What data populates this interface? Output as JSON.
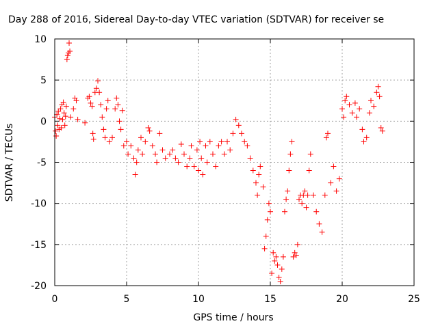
{
  "chart_data": {
    "type": "scatter",
    "title": "Day 288 of 2016, Sidereal Day-to-day VTEC variation (SDTVAR) for receiver se",
    "xlabel": "GPS time / hours",
    "ylabel": "SDTVAR / TECUs",
    "xlim": [
      0,
      25
    ],
    "ylim": [
      -20,
      10
    ],
    "xticks": [
      0,
      5,
      10,
      15,
      20,
      25
    ],
    "yticks": [
      -20,
      -15,
      -10,
      -5,
      0,
      5,
      10
    ],
    "grid": true,
    "marker": "+",
    "color": "#ff0000",
    "series": [
      {
        "points": [
          [
            0.0,
            0.5
          ],
          [
            0.05,
            -1.2
          ],
          [
            0.1,
            -1.8
          ],
          [
            0.15,
            0.8
          ],
          [
            0.2,
            -0.5
          ],
          [
            0.25,
            1.2
          ],
          [
            0.3,
            -1.0
          ],
          [
            0.35,
            0.3
          ],
          [
            0.4,
            1.5
          ],
          [
            0.45,
            -0.8
          ],
          [
            0.5,
            2.0
          ],
          [
            0.55,
            0.2
          ],
          [
            0.6,
            2.3
          ],
          [
            0.65,
            1.0
          ],
          [
            0.7,
            -0.5
          ],
          [
            0.75,
            0.6
          ],
          [
            0.8,
            1.8
          ],
          [
            0.85,
            7.5
          ],
          [
            0.9,
            8.0
          ],
          [
            0.95,
            8.3
          ],
          [
            1.0,
            9.5
          ],
          [
            1.05,
            8.5
          ],
          [
            1.1,
            0.5
          ],
          [
            1.3,
            1.5
          ],
          [
            1.4,
            2.8
          ],
          [
            1.5,
            2.5
          ],
          [
            1.6,
            0.2
          ],
          [
            2.1,
            -0.2
          ],
          [
            2.3,
            2.8
          ],
          [
            2.4,
            3.0
          ],
          [
            2.5,
            2.2
          ],
          [
            2.6,
            1.8
          ],
          [
            2.65,
            -1.5
          ],
          [
            2.7,
            -2.2
          ],
          [
            2.8,
            3.5
          ],
          [
            2.9,
            4.0
          ],
          [
            3.0,
            4.9
          ],
          [
            3.1,
            3.5
          ],
          [
            3.2,
            2.0
          ],
          [
            3.3,
            0.5
          ],
          [
            3.4,
            -1.0
          ],
          [
            3.5,
            -2.0
          ],
          [
            3.6,
            1.5
          ],
          [
            3.7,
            2.5
          ],
          [
            3.8,
            -2.5
          ],
          [
            4.0,
            -2.0
          ],
          [
            4.2,
            1.5
          ],
          [
            4.3,
            2.8
          ],
          [
            4.4,
            2.0
          ],
          [
            4.5,
            0.0
          ],
          [
            4.6,
            -1.0
          ],
          [
            4.7,
            1.3
          ],
          [
            4.8,
            -3.0
          ],
          [
            5.0,
            -2.5
          ],
          [
            5.1,
            -4.0
          ],
          [
            5.3,
            -3.0
          ],
          [
            5.5,
            -4.5
          ],
          [
            5.6,
            -6.5
          ],
          [
            5.7,
            -5.0
          ],
          [
            5.8,
            -3.5
          ],
          [
            6.0,
            -2.0
          ],
          [
            6.1,
            -4.0
          ],
          [
            6.3,
            -2.5
          ],
          [
            6.5,
            -0.8
          ],
          [
            6.6,
            -1.2
          ],
          [
            6.8,
            -3.0
          ],
          [
            7.0,
            -4.0
          ],
          [
            7.1,
            -5.0
          ],
          [
            7.3,
            -1.5
          ],
          [
            7.5,
            -3.5
          ],
          [
            7.7,
            -4.5
          ],
          [
            8.0,
            -4.0
          ],
          [
            8.2,
            -3.5
          ],
          [
            8.4,
            -4.5
          ],
          [
            8.6,
            -5.0
          ],
          [
            8.8,
            -2.8
          ],
          [
            9.0,
            -4.0
          ],
          [
            9.2,
            -5.5
          ],
          [
            9.4,
            -4.5
          ],
          [
            9.5,
            -3.0
          ],
          [
            9.7,
            -5.5
          ],
          [
            9.9,
            -3.5
          ],
          [
            10.0,
            -6.0
          ],
          [
            10.1,
            -2.5
          ],
          [
            10.2,
            -4.5
          ],
          [
            10.3,
            -6.5
          ],
          [
            10.5,
            -3.0
          ],
          [
            10.6,
            -5.0
          ],
          [
            10.8,
            -2.5
          ],
          [
            11.0,
            -4.0
          ],
          [
            11.2,
            -5.5
          ],
          [
            11.4,
            -3.0
          ],
          [
            11.6,
            -2.5
          ],
          [
            11.8,
            -4.0
          ],
          [
            12.0,
            -2.5
          ],
          [
            12.2,
            -3.5
          ],
          [
            12.4,
            -1.5
          ],
          [
            12.6,
            0.2
          ],
          [
            12.8,
            -0.5
          ],
          [
            13.0,
            -1.5
          ],
          [
            13.2,
            -2.5
          ],
          [
            13.4,
            -3.0
          ],
          [
            13.6,
            -4.5
          ],
          [
            13.8,
            -6.0
          ],
          [
            14.0,
            -7.5
          ],
          [
            14.1,
            -9.0
          ],
          [
            14.2,
            -6.5
          ],
          [
            14.3,
            -5.5
          ],
          [
            14.5,
            -8.0
          ],
          [
            14.6,
            -15.5
          ],
          [
            14.7,
            -14.0
          ],
          [
            14.8,
            -12.0
          ],
          [
            14.9,
            -10.0
          ],
          [
            15.0,
            -11.0
          ],
          [
            15.1,
            -18.5
          ],
          [
            15.2,
            -16.0
          ],
          [
            15.3,
            -17.0
          ],
          [
            15.4,
            -16.5
          ],
          [
            15.5,
            -17.5
          ],
          [
            15.6,
            -19.0
          ],
          [
            15.7,
            -19.5
          ],
          [
            15.8,
            -18.0
          ],
          [
            15.9,
            -16.5
          ],
          [
            16.0,
            -11.0
          ],
          [
            16.1,
            -9.5
          ],
          [
            16.2,
            -8.5
          ],
          [
            16.3,
            -6.0
          ],
          [
            16.4,
            -4.0
          ],
          [
            16.5,
            -2.5
          ],
          [
            16.6,
            -16.5
          ],
          [
            16.7,
            -16.0
          ],
          [
            16.8,
            -16.3
          ],
          [
            16.9,
            -15.0
          ],
          [
            17.0,
            -9.5
          ],
          [
            17.1,
            -9.0
          ],
          [
            17.2,
            -10.0
          ],
          [
            17.3,
            -9.0
          ],
          [
            17.4,
            -8.5
          ],
          [
            17.5,
            -10.5
          ],
          [
            17.6,
            -9.0
          ],
          [
            17.7,
            -6.0
          ],
          [
            17.8,
            -4.0
          ],
          [
            18.0,
            -9.0
          ],
          [
            18.2,
            -11.0
          ],
          [
            18.4,
            -12.5
          ],
          [
            18.6,
            -13.5
          ],
          [
            18.8,
            -9.0
          ],
          [
            18.9,
            -2.0
          ],
          [
            19.0,
            -1.5
          ],
          [
            19.2,
            -7.5
          ],
          [
            19.4,
            -5.5
          ],
          [
            19.6,
            -8.5
          ],
          [
            19.8,
            -7.0
          ],
          [
            20.0,
            1.5
          ],
          [
            20.1,
            0.5
          ],
          [
            20.2,
            2.5
          ],
          [
            20.3,
            3.0
          ],
          [
            20.5,
            2.0
          ],
          [
            20.7,
            1.0
          ],
          [
            20.9,
            2.2
          ],
          [
            21.0,
            0.5
          ],
          [
            21.2,
            1.5
          ],
          [
            21.4,
            -1.0
          ],
          [
            21.5,
            -2.5
          ],
          [
            21.7,
            -2.0
          ],
          [
            21.9,
            1.0
          ],
          [
            22.0,
            2.5
          ],
          [
            22.2,
            1.8
          ],
          [
            22.4,
            3.5
          ],
          [
            22.5,
            4.2
          ],
          [
            22.6,
            3.0
          ],
          [
            22.7,
            -0.8
          ],
          [
            22.8,
            -1.2
          ]
        ]
      }
    ]
  }
}
